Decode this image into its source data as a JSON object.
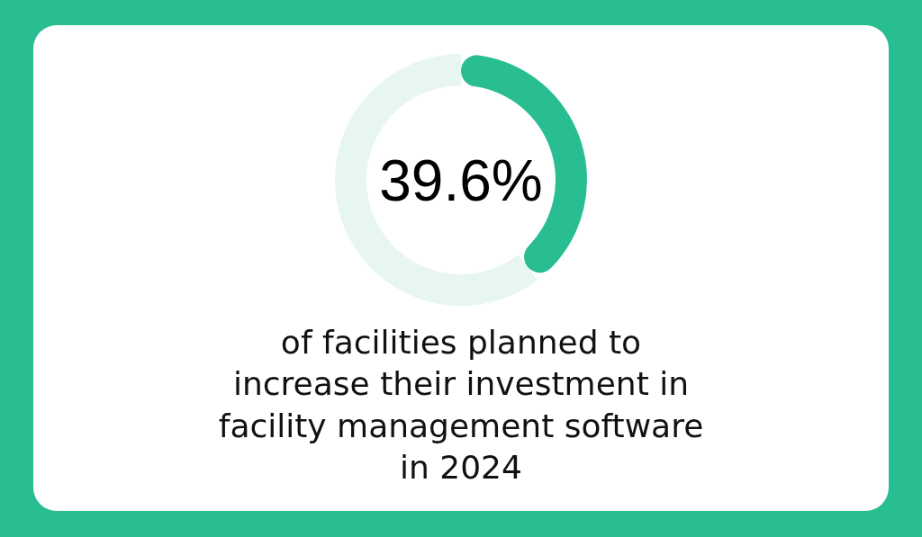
{
  "chart_data": {
    "type": "donut",
    "categories": [
      null,
      null
    ],
    "values": [
      39.6,
      60.4
    ],
    "colors": [
      "#28be92",
      "#e8f6f2"
    ],
    "annotations": [
      "39.6%",
      "of facilities planned to increase their investment in facility management software in 2024"
    ]
  }
}
